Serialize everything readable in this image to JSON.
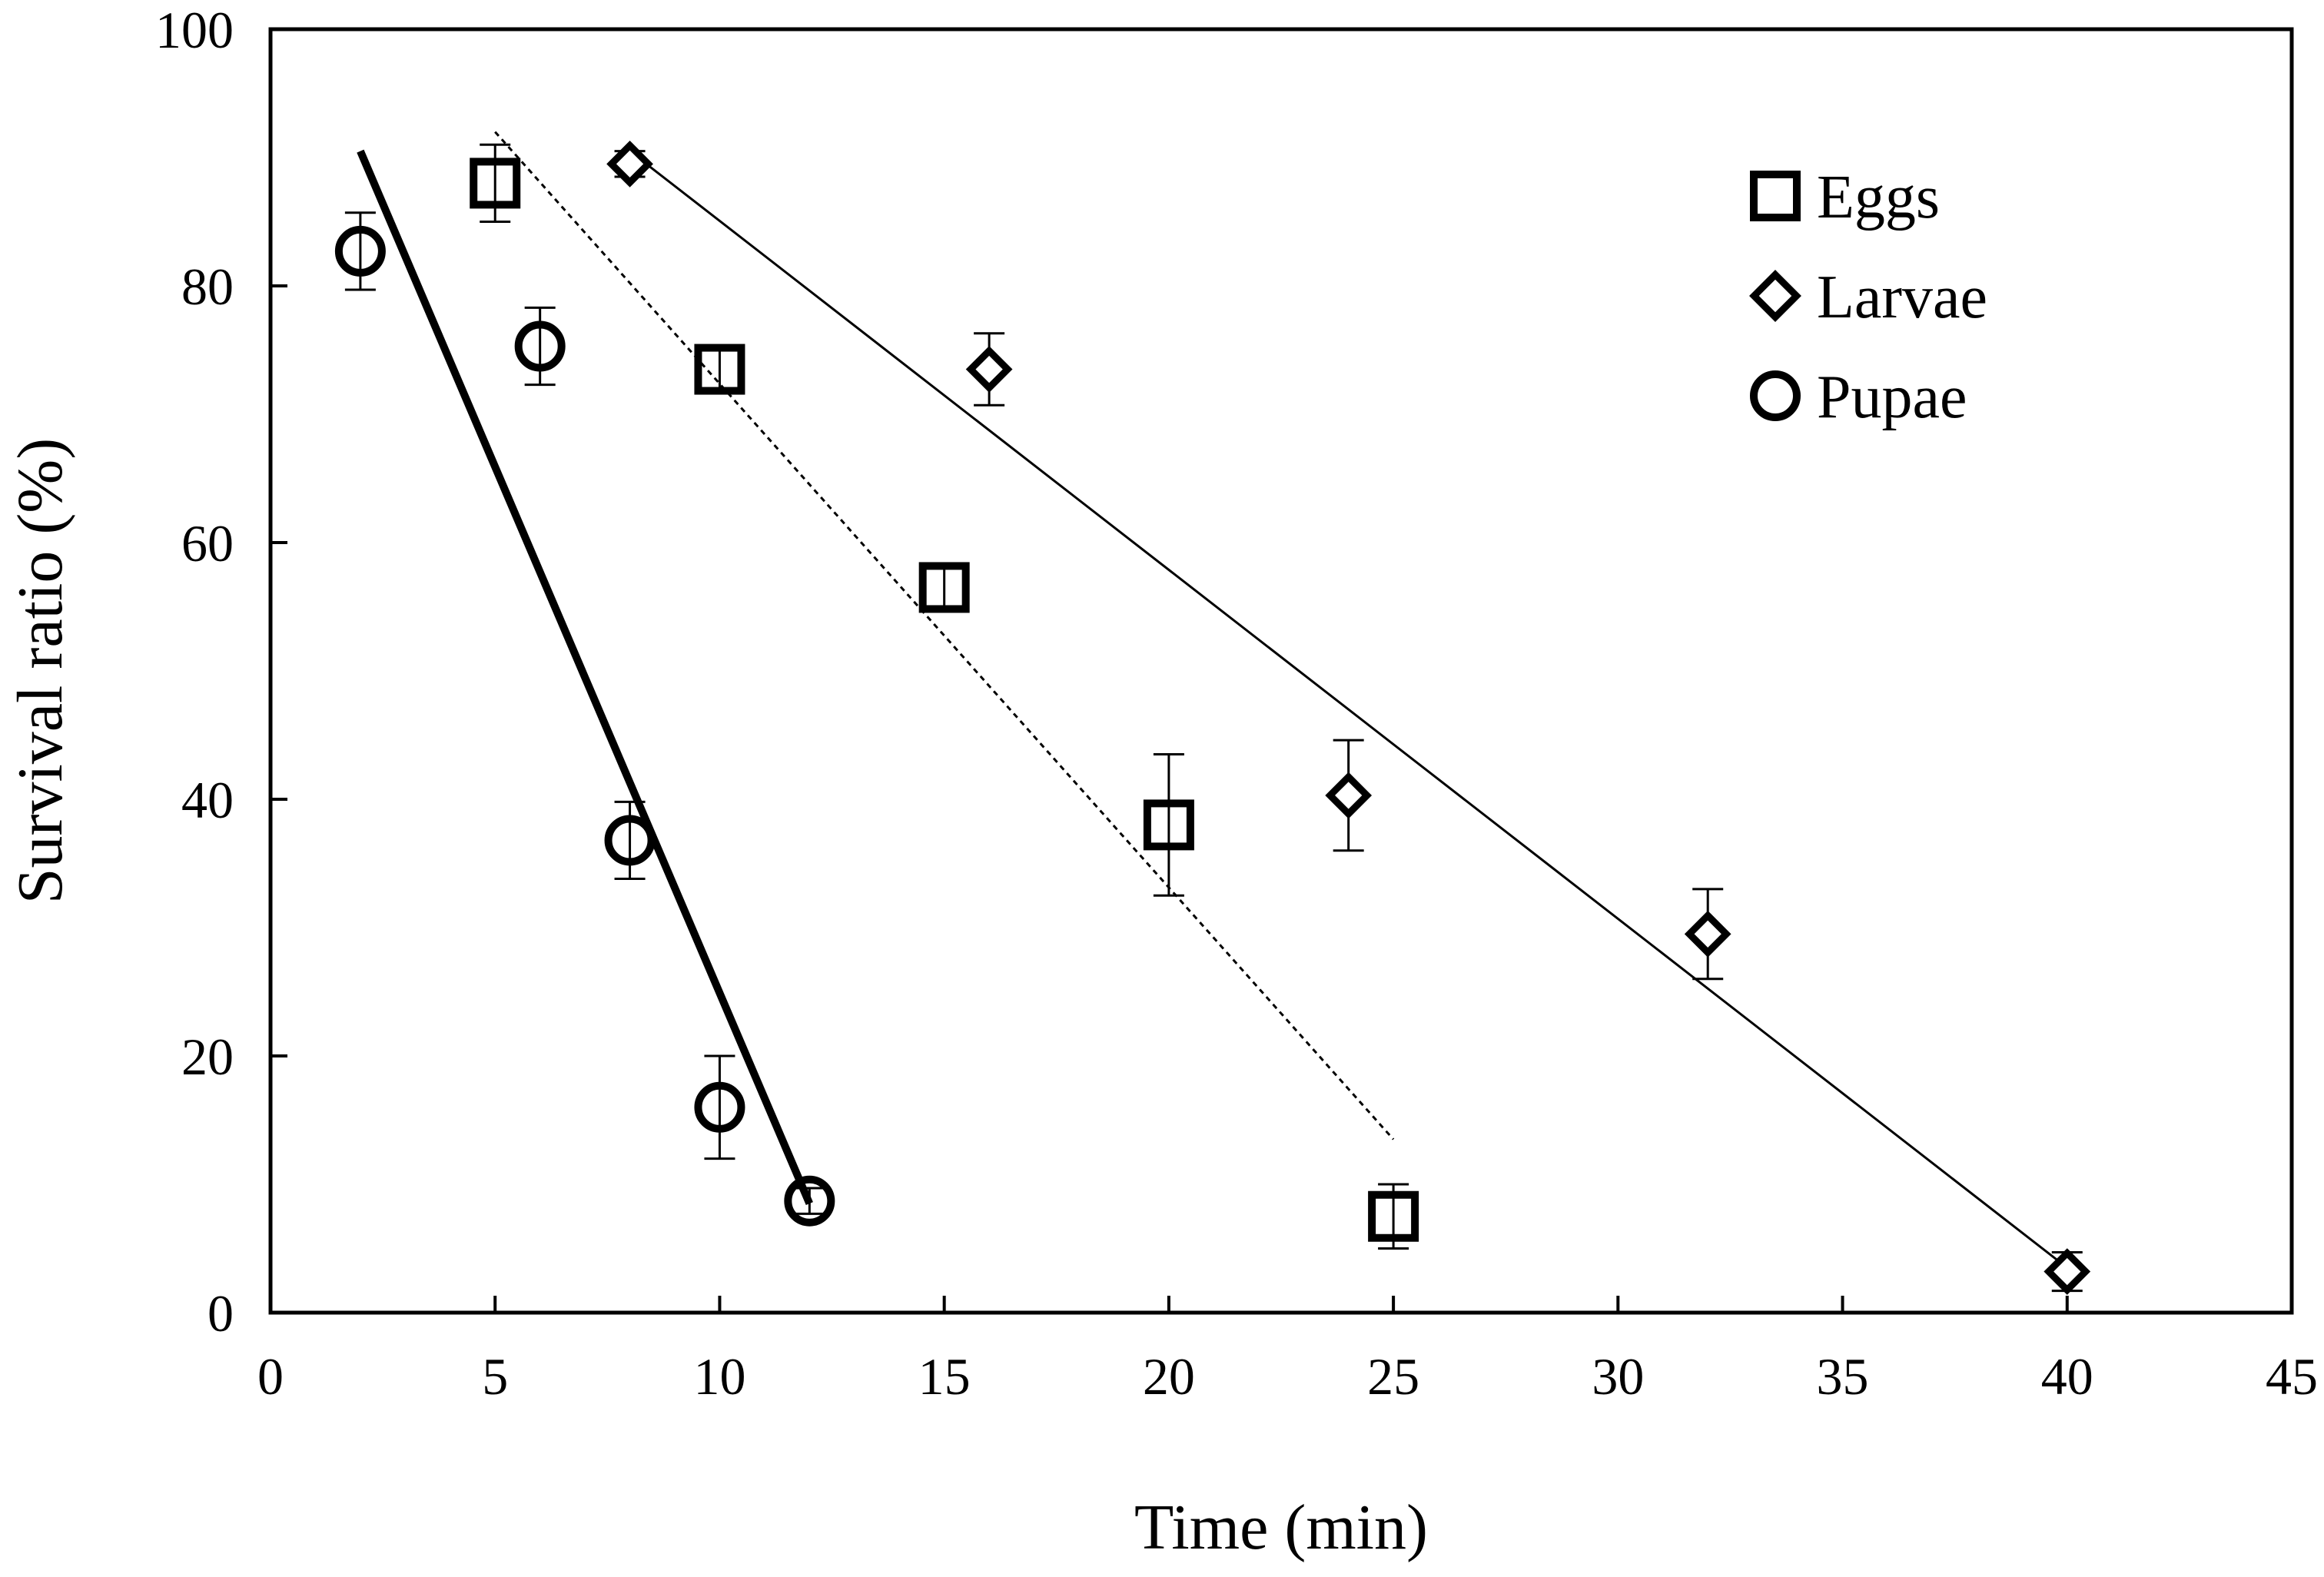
{
  "chart_data": {
    "type": "scatter",
    "title": "",
    "xlabel": "Time (min)",
    "ylabel": "Survival ratio (%)",
    "xlim": [
      0,
      45
    ],
    "ylim": [
      0,
      100
    ],
    "xticks": [
      0,
      5,
      10,
      15,
      20,
      25,
      30,
      35,
      40,
      45
    ],
    "yticks": [
      0,
      20,
      40,
      60,
      80,
      100
    ],
    "grid": false,
    "legend_position": "top-right",
    "series": [
      {
        "name": "Eggs",
        "marker": "square",
        "x": [
          5,
          10,
          15,
          20,
          25
        ],
        "y": [
          88,
          73.5,
          56.5,
          38,
          7.5
        ],
        "error": [
          3,
          1.5,
          1.5,
          5.5,
          2.5
        ],
        "fit": {
          "x": [
            5,
            25
          ],
          "y": [
            92,
            13.5
          ],
          "style": "dotted",
          "width": 3
        }
      },
      {
        "name": "Larvae",
        "marker": "diamond",
        "x": [
          8,
          16,
          24,
          32,
          40
        ],
        "y": [
          89.5,
          73.5,
          40.3,
          29.5,
          3.2
        ],
        "error": [
          1,
          2.8,
          4.3,
          3.5,
          1.5
        ],
        "fit": {
          "x": [
            8,
            40
          ],
          "y": [
            90.5,
            3.5
          ],
          "style": "solid",
          "width": 3
        }
      },
      {
        "name": "Pupae",
        "marker": "circle",
        "x": [
          2,
          6,
          8,
          10,
          12
        ],
        "y": [
          82.7,
          75.3,
          36.8,
          16,
          8.7
        ],
        "error": [
          3,
          3,
          3,
          4,
          1
        ],
        "fit": {
          "x": [
            2,
            12
          ],
          "y": [
            90.5,
            8.5
          ],
          "style": "solid",
          "width": 10
        }
      }
    ]
  }
}
